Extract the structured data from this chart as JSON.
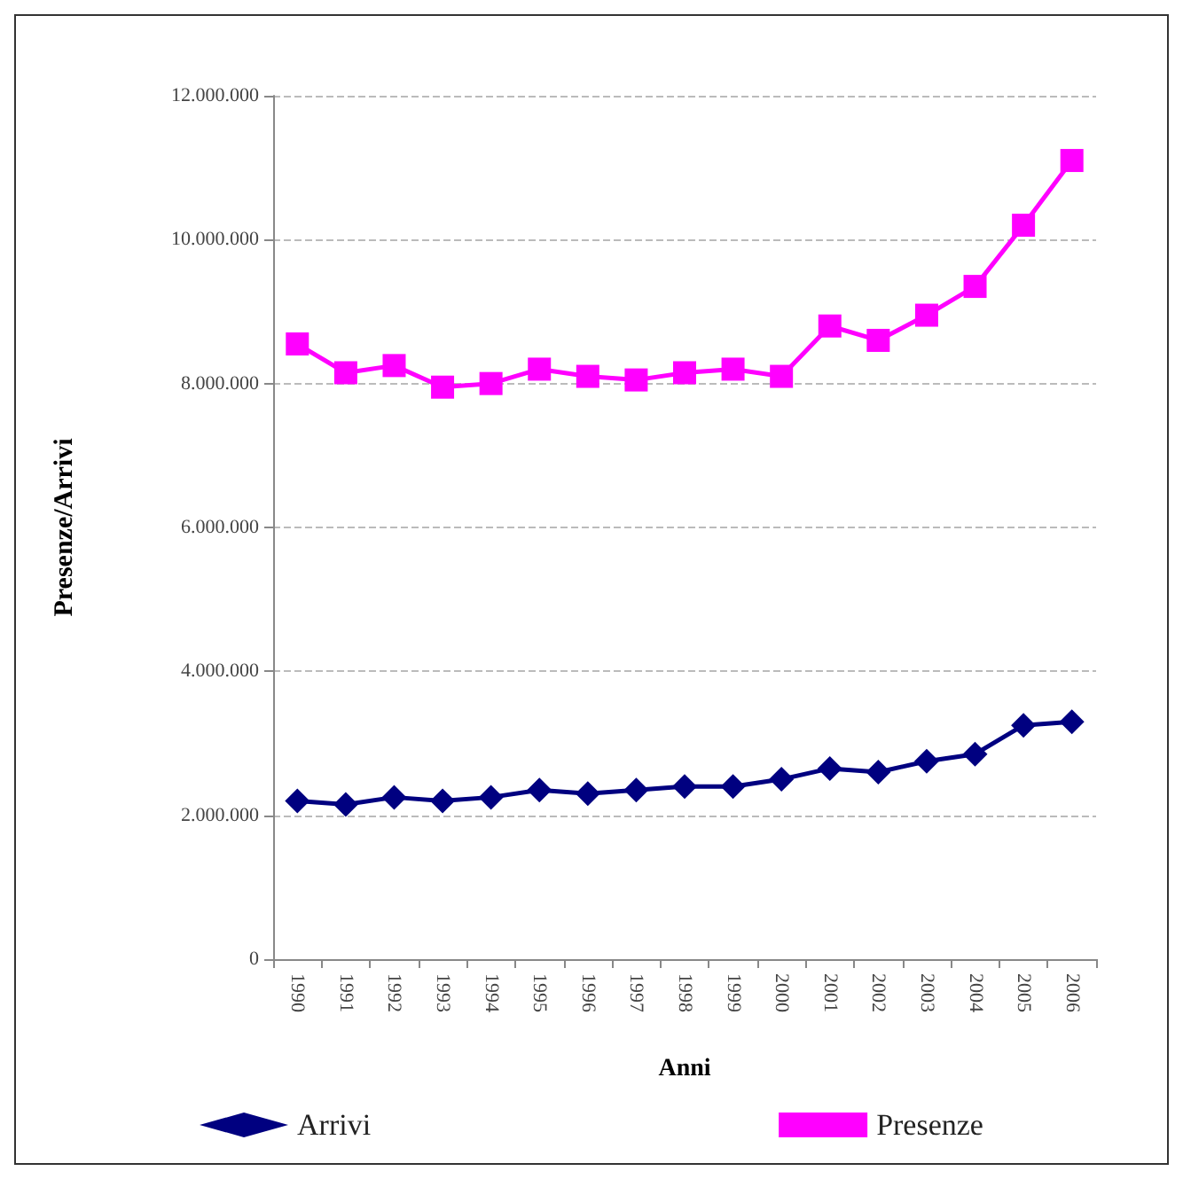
{
  "chart_data": {
    "type": "line",
    "xlabel": "Anni",
    "ylabel": "Presenze/Arrivi",
    "categories": [
      "1990",
      "1991",
      "1992",
      "1993",
      "1994",
      "1995",
      "1996",
      "1997",
      "1998",
      "1999",
      "2000",
      "2001",
      "2002",
      "2003",
      "2004",
      "2005",
      "2006"
    ],
    "series": [
      {
        "name": "Arrivi",
        "color": "#000080",
        "marker": "diamond",
        "values": [
          2200000,
          2150000,
          2250000,
          2200000,
          2250000,
          2350000,
          2300000,
          2350000,
          2400000,
          2400000,
          2500000,
          2650000,
          2600000,
          2750000,
          2850000,
          3250000,
          3300000
        ]
      },
      {
        "name": "Presenze",
        "color": "#ff00ff",
        "marker": "square",
        "values": [
          8550000,
          8150000,
          8250000,
          7950000,
          8000000,
          8200000,
          8100000,
          8050000,
          8150000,
          8200000,
          8100000,
          8800000,
          8600000,
          8950000,
          9350000,
          10200000,
          11100000
        ]
      }
    ],
    "ylim": [
      0,
      12000000
    ],
    "yticks": [
      0,
      {
        "value": 2000000,
        "label": "2.000.000"
      },
      {
        "value": 4000000,
        "label": "4.000.000"
      },
      {
        "value": 6000000,
        "label": "6.000.000"
      },
      {
        "value": 8000000,
        "label": "8.000.000"
      },
      {
        "value": 10000000,
        "label": "10.000.000"
      },
      {
        "value": 12000000,
        "label": "12.000.000"
      }
    ],
    "grid": "y",
    "legend": "bottom"
  }
}
